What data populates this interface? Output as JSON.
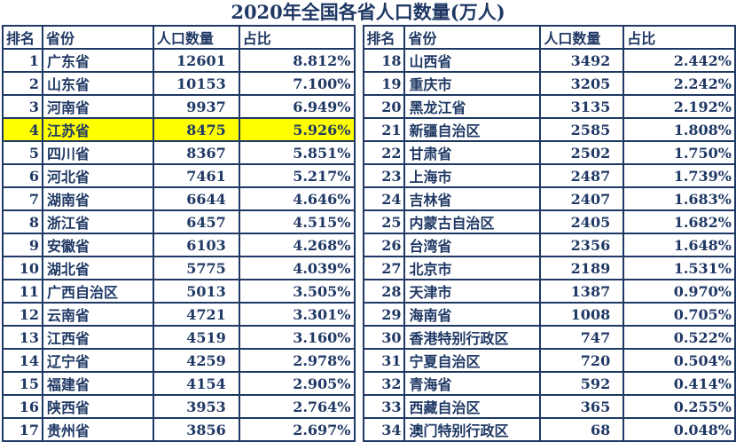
{
  "title": "2020年全国各省人口数量(万人)",
  "colors": {
    "text_color": "#1F3864",
    "border_color": "#1F3864",
    "highlight_color": "#FFFF00",
    "background": "#FFFFFF"
  },
  "chart_data": {
    "type": "table",
    "title": "2020年全国各省人口数量(万人)",
    "columns": [
      "排名",
      "省份",
      "人口数量",
      "占比"
    ],
    "column_keys": [
      "rank",
      "province",
      "population",
      "share"
    ],
    "split_at": 17,
    "highlight_rank": 4,
    "rows": [
      [
        1,
        "广东省",
        12601,
        "8.812%"
      ],
      [
        2,
        "山东省",
        10153,
        "7.100%"
      ],
      [
        3,
        "河南省",
        9937,
        "6.949%"
      ],
      [
        4,
        "江苏省",
        8475,
        "5.926%"
      ],
      [
        5,
        "四川省",
        8367,
        "5.851%"
      ],
      [
        6,
        "河北省",
        7461,
        "5.217%"
      ],
      [
        7,
        "湖南省",
        6644,
        "4.646%"
      ],
      [
        8,
        "浙江省",
        6457,
        "4.515%"
      ],
      [
        9,
        "安徽省",
        6103,
        "4.268%"
      ],
      [
        10,
        "湖北省",
        5775,
        "4.039%"
      ],
      [
        11,
        "广西自治区",
        5013,
        "3.505%"
      ],
      [
        12,
        "云南省",
        4721,
        "3.301%"
      ],
      [
        13,
        "江西省",
        4519,
        "3.160%"
      ],
      [
        14,
        "辽宁省",
        4259,
        "2.978%"
      ],
      [
        15,
        "福建省",
        4154,
        "2.905%"
      ],
      [
        16,
        "陕西省",
        3953,
        "2.764%"
      ],
      [
        17,
        "贵州省",
        3856,
        "2.697%"
      ],
      [
        18,
        "山西省",
        3492,
        "2.442%"
      ],
      [
        19,
        "重庆市",
        3205,
        "2.242%"
      ],
      [
        20,
        "黑龙江省",
        3135,
        "2.192%"
      ],
      [
        21,
        "新疆自治区",
        2585,
        "1.808%"
      ],
      [
        22,
        "甘肃省",
        2502,
        "1.750%"
      ],
      [
        23,
        "上海市",
        2487,
        "1.739%"
      ],
      [
        24,
        "吉林省",
        2407,
        "1.683%"
      ],
      [
        25,
        "内蒙古自治区",
        2405,
        "1.682%"
      ],
      [
        26,
        "台湾省",
        2356,
        "1.648%"
      ],
      [
        27,
        "北京市",
        2189,
        "1.531%"
      ],
      [
        28,
        "天津市",
        1387,
        "0.970%"
      ],
      [
        29,
        "海南省",
        1008,
        "0.705%"
      ],
      [
        30,
        "香港特别行政区",
        747,
        "0.522%"
      ],
      [
        31,
        "宁夏自治区",
        720,
        "0.504%"
      ],
      [
        32,
        "青海省",
        592,
        "0.414%"
      ],
      [
        33,
        "西藏自治区",
        365,
        "0.255%"
      ],
      [
        34,
        "澳门特别行政区",
        68,
        "0.048%"
      ]
    ]
  }
}
